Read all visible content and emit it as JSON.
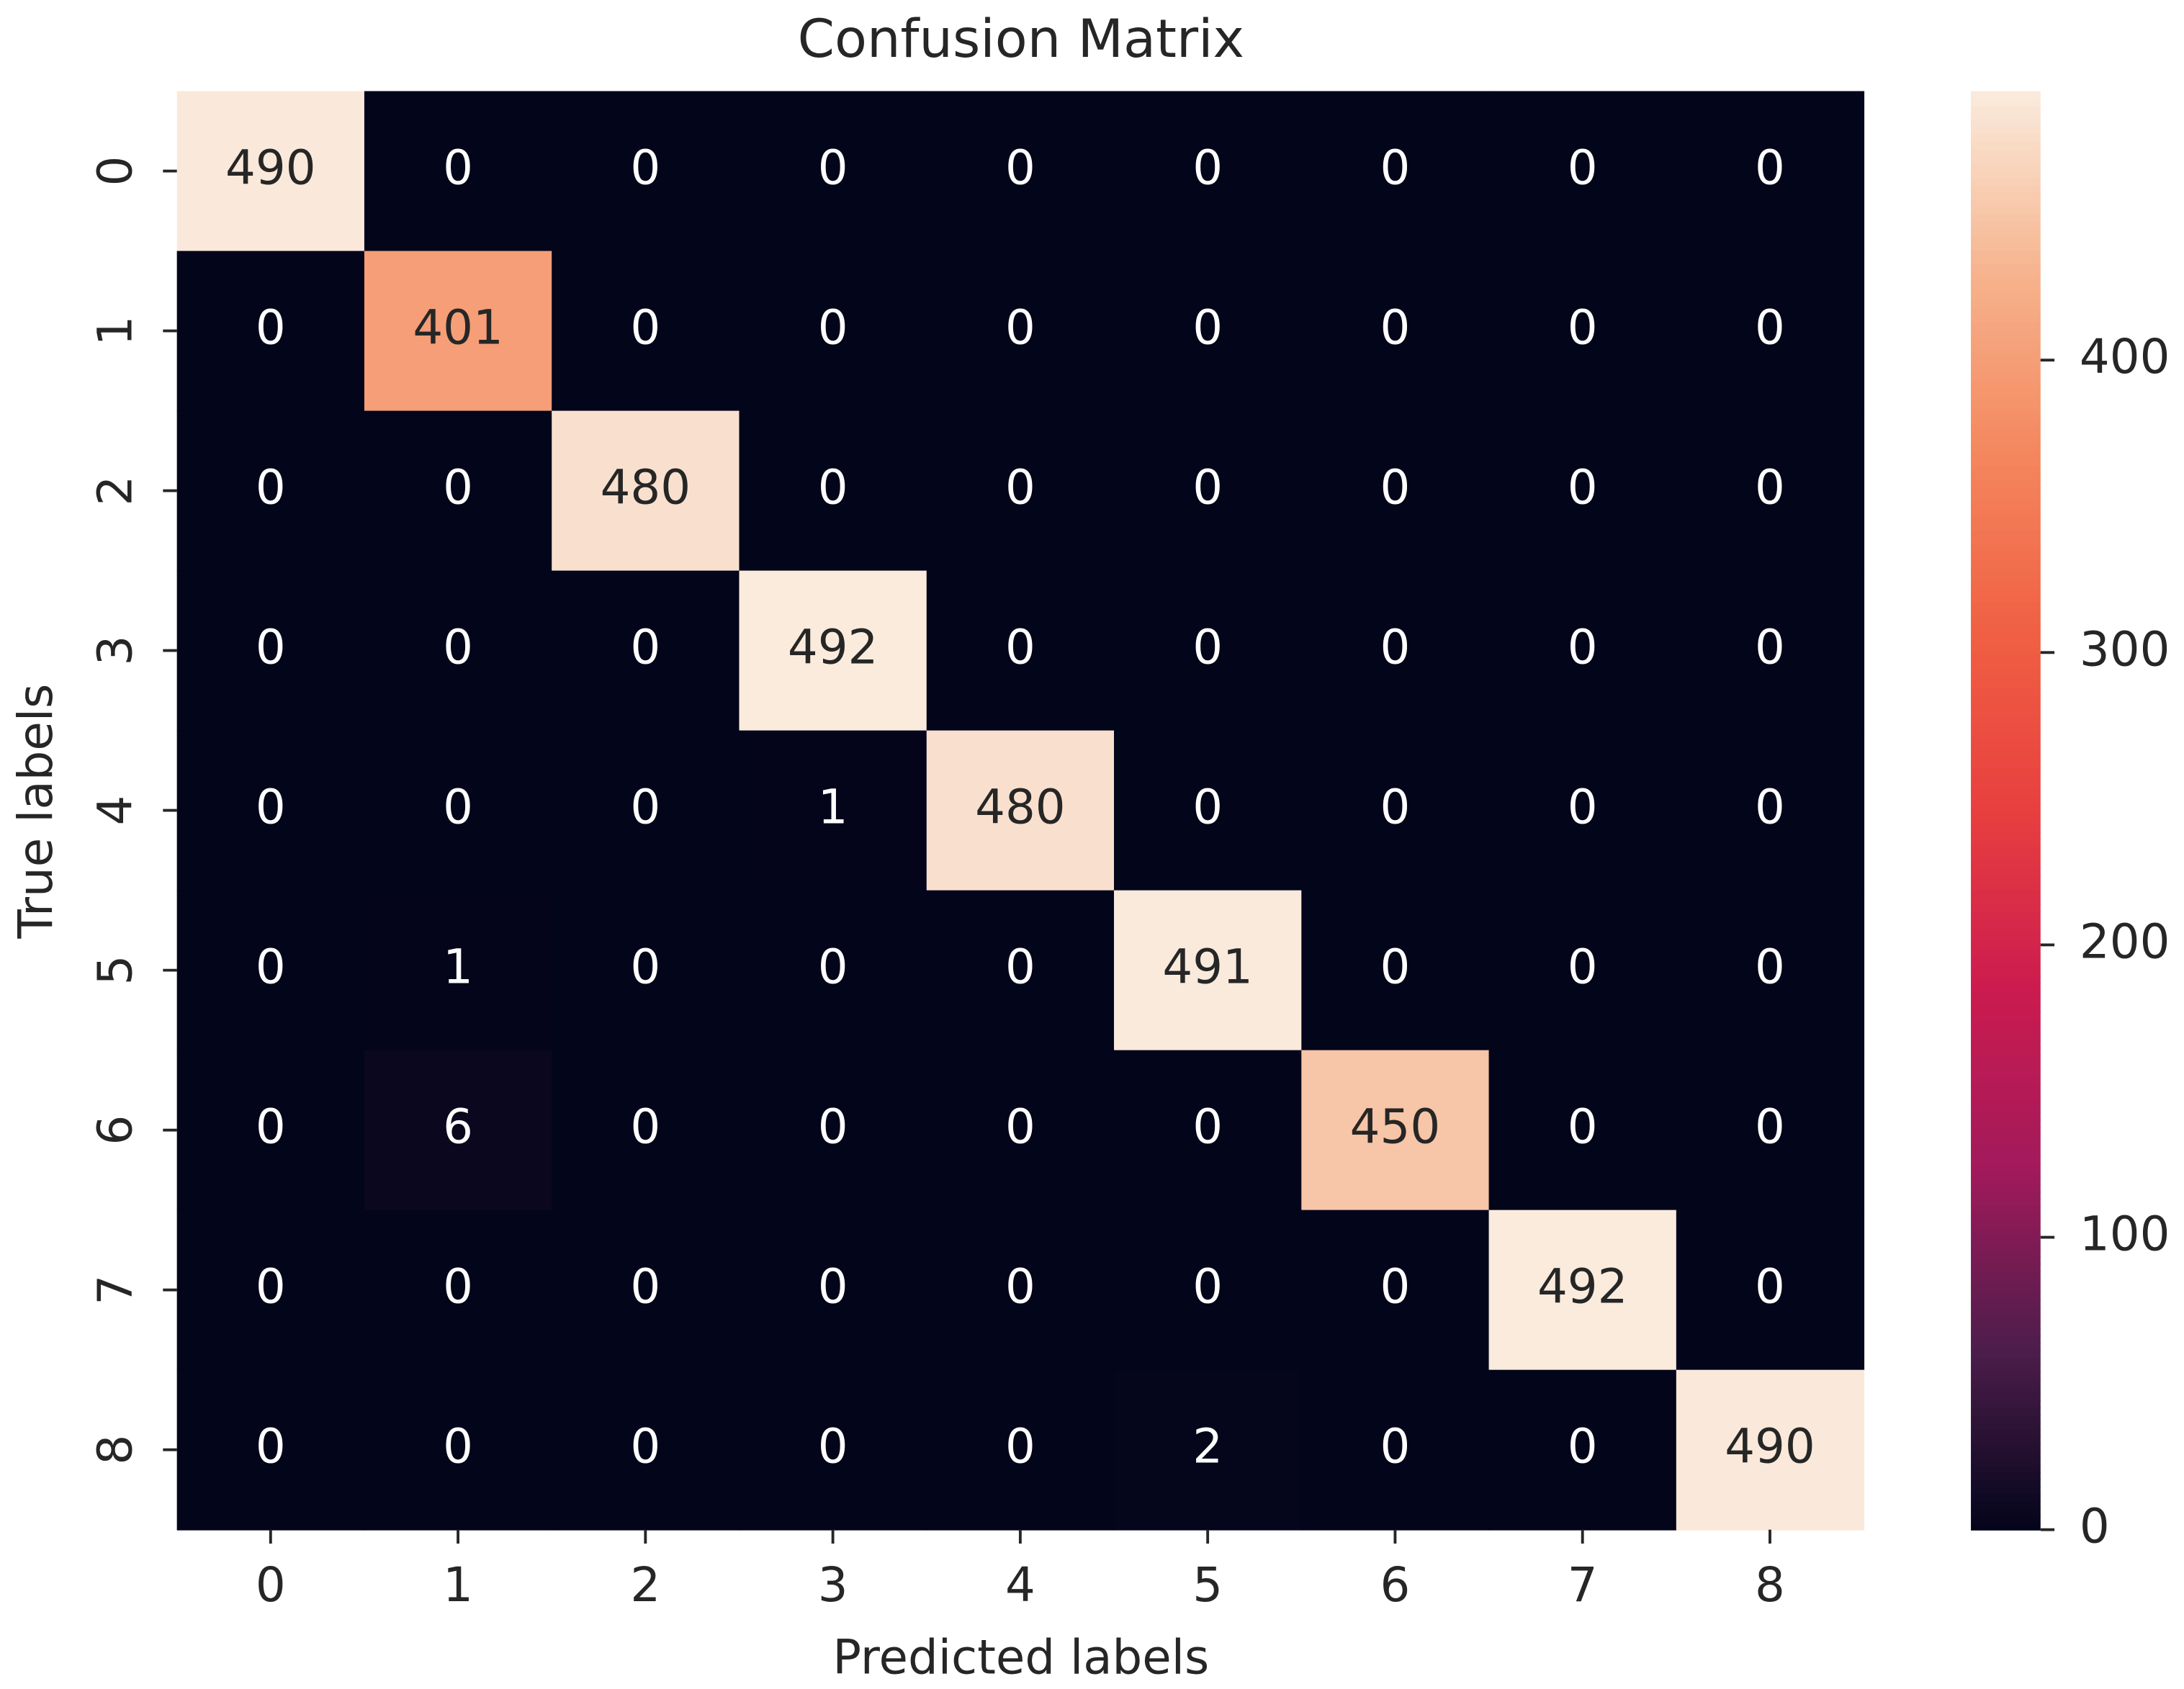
{
  "chart_data": {
    "type": "heatmap",
    "title": "Confusion Matrix",
    "xlabel": "Predicted labels",
    "ylabel": "True labels",
    "x": [
      "0",
      "1",
      "2",
      "3",
      "4",
      "5",
      "6",
      "7",
      "8"
    ],
    "y": [
      "0",
      "1",
      "2",
      "3",
      "4",
      "5",
      "6",
      "7",
      "8"
    ],
    "values": [
      [
        490,
        0,
        0,
        0,
        0,
        0,
        0,
        0,
        0
      ],
      [
        0,
        401,
        0,
        0,
        0,
        0,
        0,
        0,
        0
      ],
      [
        0,
        0,
        480,
        0,
        0,
        0,
        0,
        0,
        0
      ],
      [
        0,
        0,
        0,
        492,
        0,
        0,
        0,
        0,
        0
      ],
      [
        0,
        0,
        0,
        1,
        480,
        0,
        0,
        0,
        0
      ],
      [
        0,
        1,
        0,
        0,
        0,
        491,
        0,
        0,
        0
      ],
      [
        0,
        6,
        0,
        0,
        0,
        0,
        450,
        0,
        0
      ],
      [
        0,
        0,
        0,
        0,
        0,
        0,
        0,
        492,
        0
      ],
      [
        0,
        0,
        0,
        0,
        0,
        2,
        0,
        0,
        490
      ]
    ],
    "zlim": [
      0,
      492
    ],
    "zticks": [
      0,
      100,
      200,
      300,
      400
    ],
    "colormap": [
      "#03051A",
      "#4C1D4B",
      "#A11A5B",
      "#CB1B4F",
      "#E83F3F",
      "#F06043",
      "#F4875E",
      "#F6B48E",
      "#FAEBDD"
    ]
  }
}
